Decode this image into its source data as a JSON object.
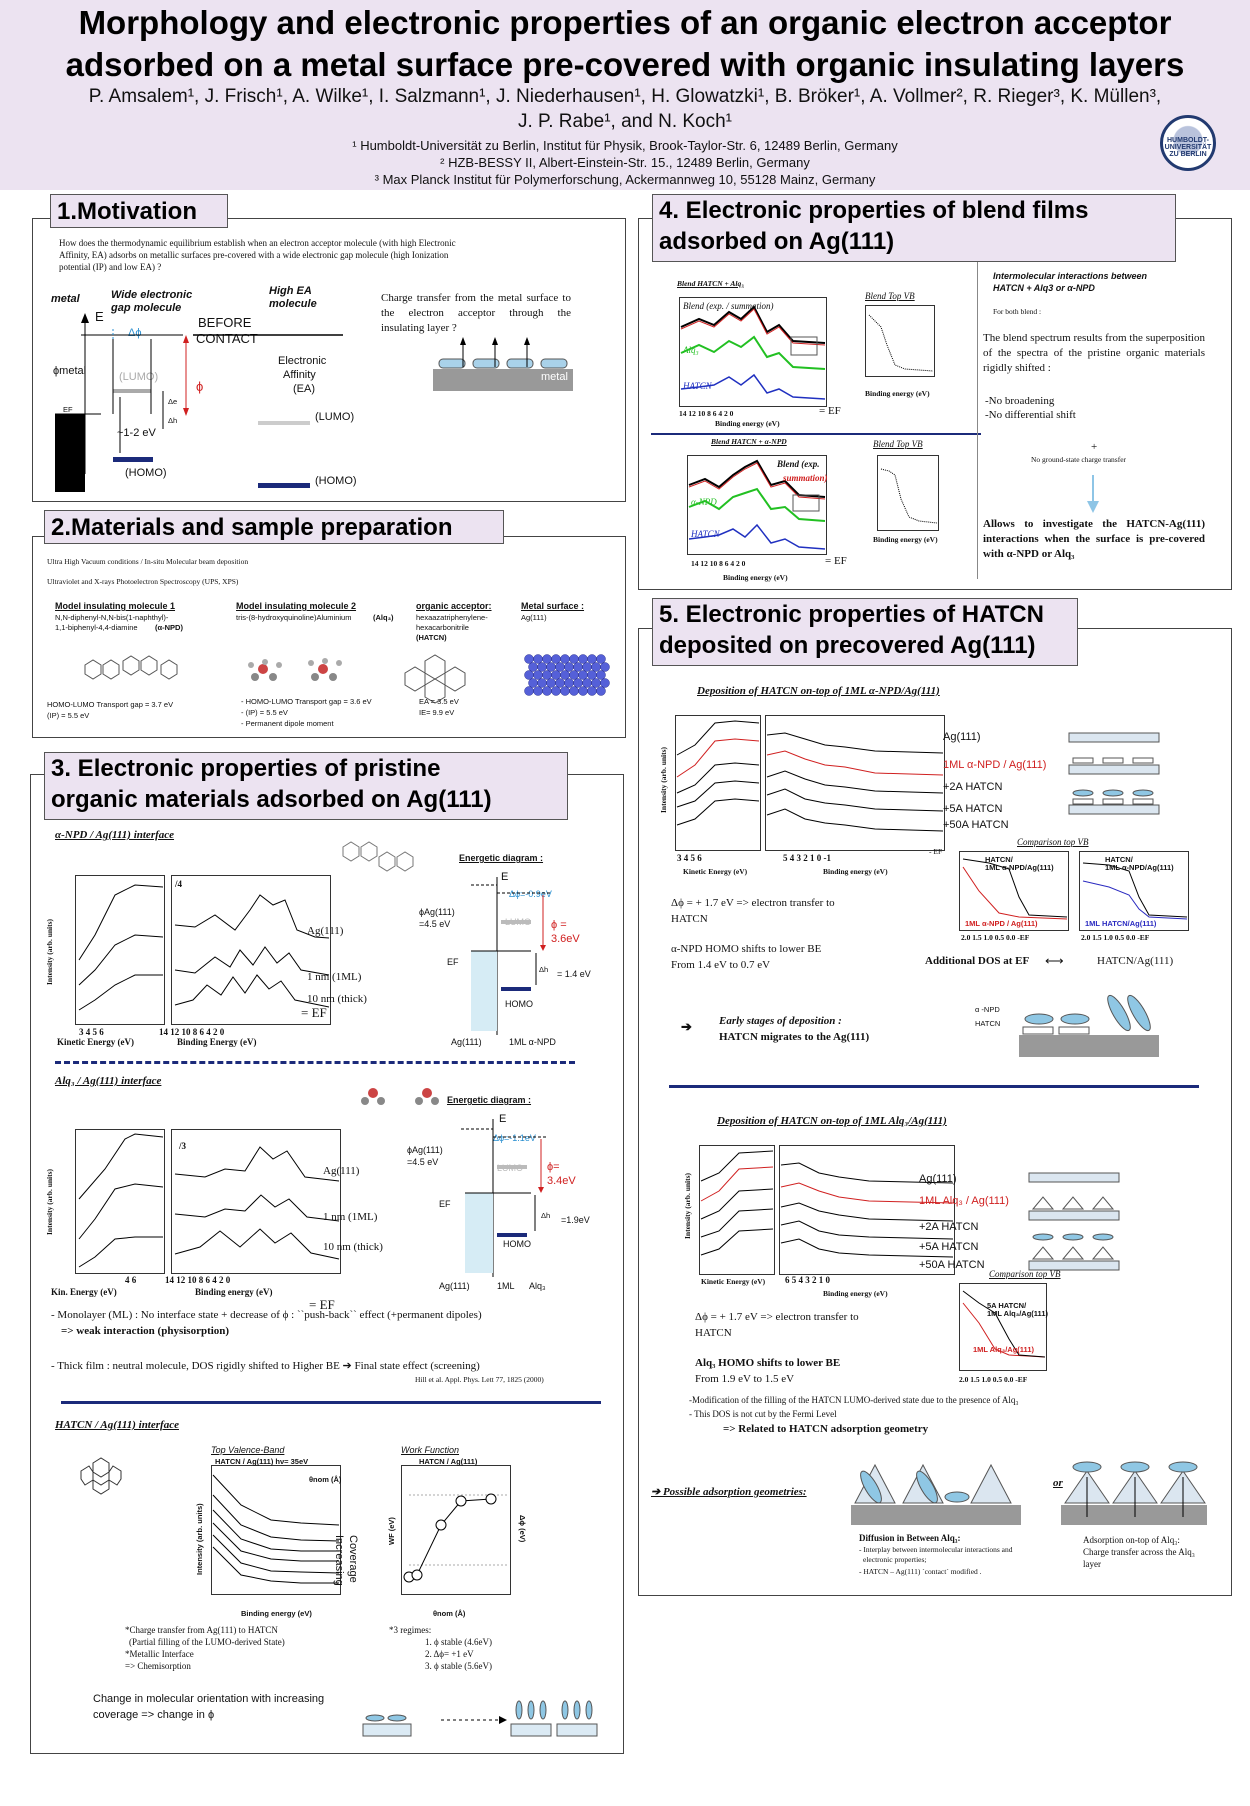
{
  "header": {
    "title_line1": "Morphology and electronic properties of an organic electron acceptor",
    "title_line2": "adsorbed on a metal surface pre-covered with organic insulating layers",
    "authors_line1": "P. Amsalem¹, J. Frisch¹, A. Wilke¹, I. Salzmann¹, J. Niederhausen¹, H. Glowatzki¹, B. Bröker¹, A. Vollmer², R. Rieger³, K. Müllen³,",
    "authors_line2": "J. P. Rabe¹, and N. Koch¹",
    "affil1": "¹ Humboldt-Universität zu Berlin, Institut für Physik, Brook-Taylor-Str. 6, 12489 Berlin, Germany",
    "affil2": "² HZB-BESSY II, Albert-Einstein-Str. 15., 12489 Berlin, Germany",
    "affil3": "³ Max Planck Institut für Polymerforschung, Ackermannweg 10, 55128 Mainz, Germany",
    "logo_text": "HUMBOLDT-UNIVERSITÄT ZU BERLIN"
  },
  "s1": {
    "title": "1.Motivation",
    "question": "How does the thermodynamic equilibrium establish when an electron acceptor molecule (with high Electronic Affinity, EA) adsorbs on metallic surfaces pre-covered with a wide electronic gap molecule (high Ionization potential (IP) and low EA) ?",
    "metal": "metal",
    "wide_gap": "Wide electronic gap molecule",
    "high_ea": "High EA molecule",
    "E": "E",
    "dphi": "Δϕ",
    "before": "BEFORE",
    "contact": "CONTACT",
    "phimetal": "ϕmetal",
    "lumo1": "(LUMO)",
    "phi": "ϕ",
    "ea1": "Electronic",
    "ea2": "Affinity",
    "ea3": "(EA)",
    "de": "Δe",
    "dh": "Δh",
    "ef": "EF",
    "gap": "~1-2 eV",
    "homo1": "(HOMO)",
    "lumo2": "(LUMO)",
    "homo2": "(HOMO)",
    "charge_transfer": "Charge transfer from the metal surface to the electron acceptor through the insulating layer ?",
    "metal_label": "metal"
  },
  "s2": {
    "title": "2.Materials and sample preparation",
    "line1": "Ultra High Vacuum conditions / In-situ Molecular beam deposition",
    "line2": "Ultraviolet and X-rays Photoelectron Spectroscopy (UPS, XPS)",
    "m1_head": "Model insulating molecule 1",
    "m1_name1": "N,N-diphenyl-N,N-bis(1-naphthyl)-",
    "m1_name2": "1,1-biphenyl-4,4-diamine",
    "m1_abbr": "(α-NPD)",
    "m2_head": "Model insulating molecule 2",
    "m2_name": "tris-(8-hydroxyquinoline)Aluminium",
    "m2_abbr": "(Alq₃)",
    "acc_head": "organic acceptor:",
    "acc_name1": "hexaazatriphenylene-",
    "acc_name2": "hexacarbonitrile",
    "acc_abbr": "(HATCN)",
    "surf_head": "Metal surface :",
    "surf_name": "Ag(111)",
    "m1_gap": "HOMO-LUMO Transport gap = 3.7 eV",
    "m1_ip": "(IP) = 5.5 eV",
    "m2_gap": "- HOMO-LUMO Transport gap = 3.6 eV",
    "m2_ip": "- (IP) = 5.5 eV",
    "m2_dip": "- Permanent dipole moment",
    "acc_ea": "EA = 3.5 eV",
    "acc_ie": "IE= 9.9 eV"
  },
  "s3": {
    "title1": "3. Electronic properties of pristine",
    "title2": "organic materials adsorbed on Ag(111)",
    "npd_head": "α-NPD / Ag(111) interface",
    "x4": "/4",
    "l_ag": "Ag(111)",
    "l_1nm": "1 nm (1ML)",
    "l_10nm": "10 nm (thick)",
    "ylabel": "Intensity (arb. units)",
    "npd_ke_ticks": "3  4  5  6",
    "npd_be_ticks": "14  12  10  8  6  4  2  0",
    "ke_label": "Kinetic Energy (eV)",
    "be_label": "Binding Energy (eV)",
    "ef": "= EF",
    "energetic": "Energetic diagram :",
    "E": "E",
    "npd_dphi": "Δϕ=-0.9eV",
    "phi_ag": "ϕAg(111)",
    "phi_ag_val": "=4.5 eV",
    "lumo": "LUMO",
    "npd_phi1": "ϕ =",
    "npd_phi2": "3.6eV",
    "ef2": "EF",
    "dh": "Δh",
    "npd_dh": "= 1.4 eV",
    "homo": "HOMO",
    "npd_x1": "Ag(111)",
    "npd_x2": "1ML α-NPD",
    "alq_head": "Alq₃ / Ag(111) interface",
    "x3": "/3",
    "alq_ke_ticks": "4  6",
    "alq_be_ticks": "14  12  10  8  6  4  2  0",
    "ke_label2": "Kin. Energy (eV)",
    "be_label2": "Binding energy (eV)",
    "alq_dphi": "Δϕ=-1.1eV",
    "alq_phi1": "ϕ=",
    "alq_phi2": "3.4eV",
    "alq_dh": "=1.9eV",
    "alq_x1": "Ag(111)",
    "alq_x2": "1ML",
    "alq_x3": "Alq₃",
    "note1": "- Monolayer (ML) : No interface state + decrease of ϕ : ``push-back`` effect (+permanent dipoles)",
    "note1b": "=> weak interaction (physisorption)",
    "note2": "- Thick film : neutral molecule, DOS rigidly shifted to Higher BE ➔ Final state effect (screening)",
    "ref": "Hill et al. Appl. Phys. Lett 77, 1825 (2000)",
    "hatcn_head": "HATCN / Ag(111) interface",
    "topvb": "Top Valence-Band",
    "wf": "Work Function",
    "plot_vb_title": "HATCN / Ag(111) hν= 35eV",
    "plot_wf_title": "HATCN / Ag(111)",
    "theta": "θnom (Å)",
    "increasing": "Increasing",
    "coverage": "Coverage",
    "vb_xlabel": "Binding energy (eV)",
    "vb_ylabel": "Intensity (arb. units)",
    "wf_xlabel": "θnom (Å)",
    "wf_ylabel": "WF (eV)",
    "wf_ylabel2": "Δϕ (eV)",
    "hn1": "*Charge transfer from Ag(111) to HATCN",
    "hn2": "(Partial filling of the LUMO-derived State)",
    "hn3": "*Metallic Interface",
    "hn4": "=> Chemisorption",
    "reg0": "*3 regimes:",
    "reg1": "1. ϕ stable (4.6eV)",
    "reg2": "2. Δϕ= +1 eV",
    "reg3": "3. ϕ stable (5.6eV)",
    "orient1": "Change in molecular orientation with increasing",
    "orient2": "coverage => change in ϕ"
  },
  "s4": {
    "title1": "4. Electronic properties of blend films",
    "title2": "adsorbed on Ag(111)",
    "b1_head": "Blend HATCN + Alq₃",
    "b1_blend": "Blend (exp. / summation)",
    "b1_alq": "Alq₃",
    "b1_hatcn": "HATCN",
    "b1_top": "Blend Top VB",
    "b2_head": "Blend HATCN + α-NPD",
    "b2_blend1": "Blend (exp.",
    "b2_blend2": "summation)",
    "b2_npd": "α-NPD",
    "b2_hatcn": "HATCN",
    "b2_top": "Blend Top VB",
    "ticks": "14  12  10  8  6  4  2  0",
    "ef": "= EF",
    "xlabel": "Binding energy (eV)",
    "inter1": "Intermolecular interactions between",
    "inter2": "HATCN + Alq3 or α-NPD",
    "forboth": "For both blend :",
    "superpos": "The blend spectrum results from the superposition of the spectra of the pristine organic materials rigidly shifted :",
    "nobroad": "-No broadening",
    "nodiff": "-No differential shift",
    "plus": "+",
    "noground": "No ground-state charge transfer",
    "allows": "Allows to investigate the HATCN-Ag(111) interactions when the surface is pre-covered with α-NPD or Alq₃"
  },
  "s5": {
    "title1": "5. Electronic properties of HATCN",
    "title2": "deposited on precovered Ag(111)",
    "d1_head": "Deposition of HATCN on-top of 1ML α-NPD/Ag(111)",
    "l_ag": "Ag(111)",
    "l_npd": "1ML α-NPD / Ag(111)",
    "l_2a": "+2A HATCN",
    "l_5a": "+5A HATCN",
    "l_50a": "+50A HATCN",
    "ke_ticks": "3  4  5  6",
    "be_ticks": "5  4  3  2  1  0  -1",
    "ke_label": "Kinetic Energy (eV)",
    "be_label": "Binding energy (eV)",
    "ef": "- EF",
    "comp": "Comparison top VB",
    "c1a": "HATCN/",
    "c1b": "1ML α-NPD/Ag(111)",
    "c1c": "1ML α-NPD / Ag(111)",
    "c2a": "HATCN/",
    "c2b": "1ML α-NPD/Ag(111)",
    "c2c": "1ML HATCN/Ag(111)",
    "cticks": "2.0 1.5 1.0 0.5 0.0 -EF",
    "dphi1": "Δϕ = + 1.7 eV => electron transfer to",
    "dphi1b": "HATCN",
    "npd_shift": "α-NPD HOMO shifts to lower BE",
    "npd_from": "From 1.4 eV to 0.7 eV",
    "adddos": "Additional DOS at EF",
    "arrow_lr": "⟷",
    "hatcn_ag": "HATCN/Ag(111)",
    "early1": "Early stages of deposition :",
    "early2": "HATCN migrates to the Ag(111)",
    "leg_npd": "α -NPD",
    "leg_hatcn": "HATCN",
    "d2_head": "Deposition of HATCN on-top of 1ML Alq₃/Ag(111)",
    "l2_ag": "Ag(111)",
    "l2_alq": "1ML Alq₃ / Ag(111)",
    "l2_2a": "+2A HATCN",
    "l2_5a": "+5A HATCN",
    "l2_50a": "+50A HATCN",
    "ke2_label": "Kinetic Energy (eV)",
    "be2_label": "Binding energy (eV)",
    "be2_ticks": "6  5  4  3  2  1  0",
    "comp2": "Comparison top VB",
    "c3a": "5A HATCN/",
    "c3b": "1ML Alq₃/Ag(111)",
    "c3c": "1ML Alq₃/Ag(111)",
    "dphi2": "Δϕ = + 1.7 eV => electron transfer to",
    "dphi2b": "HATCN",
    "alq_shift": "Alq₃ HOMO shifts to lower BE",
    "alq_from": "From 1.9 eV to 1.5 eV",
    "mod1": "-Modification of the filling of the HATCN LUMO-derived state due to the presence of Alq₃",
    "mod2": "- This DOS is not cut by the Fermi Level",
    "mod3": "=> Related to HATCN adsorption geometry",
    "possible": "➔ Possible adsorption geometries:",
    "or": "or",
    "g1_head": "Diffusion in Between Alq₃:",
    "g1_l1": "- Interplay between intermolecular interactions and",
    "g1_l2": "electronic properties;",
    "g1_l3": "- HATCN – Ag(111) `contact` modified .",
    "g2_head": "Adsorption on-top of Alq₃:",
    "g2_l1": "Charge transfer across the Alq₃",
    "g2_l2": "layer"
  },
  "colors": {
    "header_bg": "#ece3f1",
    "navy": "#1b2a7a",
    "red": "#d02020",
    "blue": "#2a8fd0",
    "green": "#22c022"
  }
}
